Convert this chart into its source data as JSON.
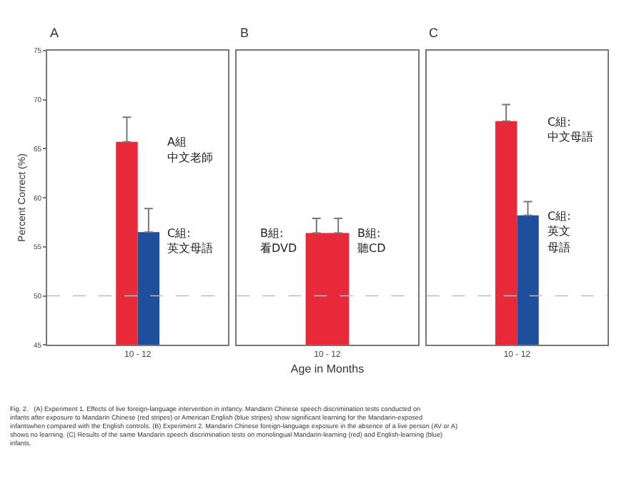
{
  "chart_data": [
    {
      "type": "bar",
      "title": "A",
      "ylabel": "Percent Correct (%)",
      "categories": [
        "10 - 12"
      ],
      "ylim": [
        45,
        75
      ],
      "yticks": [
        45,
        50,
        55,
        60,
        65,
        70,
        75
      ],
      "series": [
        {
          "color": "#e8293a",
          "values": [
            65.7
          ],
          "errors": [
            [
              65.7,
              68.2
            ]
          ]
        },
        {
          "color": "#1f4e9c",
          "values": [
            56.5
          ],
          "errors": [
            [
              56.5,
              58.9
            ]
          ]
        }
      ],
      "ref_lines": [
        {
          "axis": "y",
          "value": 50,
          "color": "#bbbbbb",
          "line_style": "dashed"
        }
      ],
      "annotations": [
        {
          "text": "A組",
          "x": "10 - 12",
          "y": 65.7
        },
        {
          "text": "中文老師"
        },
        {
          "text": "C組:\n英文母語",
          "x": "10 - 12",
          "y": 56.5
        },
        "Fig. 2.   (A) Experiment 1. Effects of live foreign-language intervention in infancy. Mandarin Chinese speech discrimination tests conducted on infants after exposure to Mandarin Chinese (red stripes) or American English (blue stripes) show significant learning for the Mandarin-exposed infantswhen compared with the English controls. (B) Experiment 2. Mandarin Chinese foreign-language exposure in the absence of a live person (AV or A) shows no learning. (C) Results of the same Mandarin speech discrimination tests on monolingual Mandarin-learning (red) and English-learning (blue) infants."
      ]
    },
    {
      "type": "bar",
      "title": "B",
      "xlabel": "Age in Months",
      "categories": [
        "10 - 12"
      ],
      "ylim": [
        45,
        75
      ],
      "yticks": [
        45,
        50,
        55,
        60,
        65,
        70,
        75
      ],
      "tick_labels": "x",
      "series": [
        {
          "color": "#e8293a",
          "values": [
            56.4
          ],
          "errors": [
            [
              56.4,
              57.9
            ]
          ]
        },
        {
          "color": "#e8293a",
          "values": [
            56.4
          ],
          "errors": [
            [
              56.4,
              57.9
            ]
          ]
        }
      ],
      "ref_lines": [
        {
          "axis": "y",
          "value": 50,
          "color": "#bbbbbb",
          "line_style": "dashed"
        }
      ],
      "annotations": [
        {
          "text": "B組:\n看DVD",
          "x": "10 - 12",
          "y": 56.4
        },
        {
          "text": "B組:\n聽CD",
          "x": "10 - 12",
          "y": 56.4
        }
      ]
    },
    {
      "type": "bar",
      "title": "C",
      "categories": [
        "10 - 12"
      ],
      "ylim": [
        45,
        75
      ],
      "yticks": [
        45,
        50,
        55,
        60,
        65,
        70,
        75
      ],
      "tick_labels": "x",
      "series": [
        {
          "color": "#e8293a",
          "values": [
            67.8
          ],
          "errors": [
            [
              67.8,
              69.5
            ]
          ]
        },
        {
          "color": "#1f4e9c",
          "values": [
            58.2
          ],
          "errors": [
            [
              58.2,
              59.6
            ]
          ]
        }
      ],
      "ref_lines": [
        {
          "axis": "y",
          "value": 50,
          "color": "#bbbbbb",
          "line_style": "dashed"
        }
      ],
      "annotations": [
        {
          "text": "C組:\n中文母語",
          "x": "10 - 12",
          "y": 67.8
        },
        {
          "text": "C組:\n英文",
          "x": "10 - 12",
          "y": 58.2
        },
        {
          "text": "母語"
        }
      ]
    }
  ]
}
